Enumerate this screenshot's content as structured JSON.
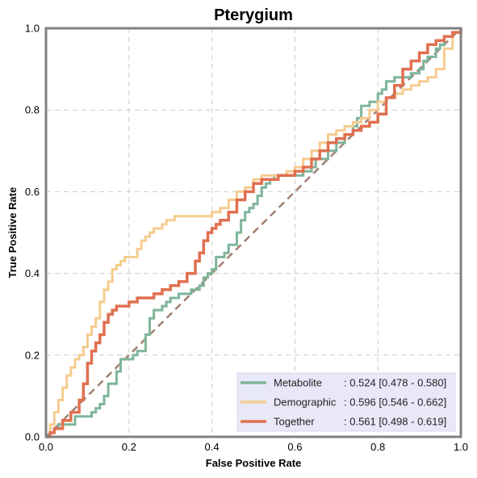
{
  "chart_data": {
    "type": "line",
    "title": "Pterygium",
    "xlabel": "False Positive Rate",
    "ylabel": "True Positive Rate",
    "xlim": [
      0,
      1
    ],
    "ylim": [
      0,
      1
    ],
    "xticks": [
      "0.0",
      "0.2",
      "0.4",
      "0.6",
      "0.8",
      "1.0"
    ],
    "yticks": [
      "0.0",
      "0.2",
      "0.4",
      "0.6",
      "0.8",
      "1.0"
    ],
    "grid": true,
    "legend_position": "bottom-right",
    "diagonal": {
      "x": [
        0,
        1
      ],
      "y": [
        0,
        1
      ],
      "color": "#a08070",
      "style": "dashed"
    },
    "series": [
      {
        "name": "Metabolite",
        "auc_label": ": 0.524 [0.478 - 0.580]",
        "color": "#7fb59a",
        "x": [
          0,
          0.01,
          0.02,
          0.03,
          0.06,
          0.07,
          0.1,
          0.11,
          0.12,
          0.13,
          0.14,
          0.15,
          0.17,
          0.18,
          0.2,
          0.21,
          0.22,
          0.24,
          0.25,
          0.26,
          0.28,
          0.29,
          0.3,
          0.32,
          0.34,
          0.35,
          0.37,
          0.38,
          0.39,
          0.4,
          0.41,
          0.43,
          0.44,
          0.46,
          0.47,
          0.48,
          0.49,
          0.5,
          0.51,
          0.52,
          0.53,
          0.54,
          0.55,
          0.6,
          0.62,
          0.64,
          0.65,
          0.68,
          0.7,
          0.72,
          0.74,
          0.75,
          0.76,
          0.78,
          0.8,
          0.81,
          0.82,
          0.84,
          0.86,
          0.88,
          0.9,
          0.91,
          0.92,
          0.94,
          0.95,
          0.96,
          0.98,
          1.0
        ],
        "y": [
          0,
          0.01,
          0.02,
          0.03,
          0.03,
          0.05,
          0.05,
          0.06,
          0.07,
          0.08,
          0.1,
          0.13,
          0.16,
          0.19,
          0.19,
          0.2,
          0.21,
          0.25,
          0.29,
          0.31,
          0.32,
          0.33,
          0.34,
          0.35,
          0.35,
          0.36,
          0.37,
          0.39,
          0.4,
          0.41,
          0.44,
          0.45,
          0.47,
          0.5,
          0.53,
          0.55,
          0.56,
          0.57,
          0.59,
          0.61,
          0.62,
          0.63,
          0.64,
          0.64,
          0.65,
          0.66,
          0.68,
          0.7,
          0.72,
          0.74,
          0.76,
          0.78,
          0.81,
          0.82,
          0.84,
          0.85,
          0.87,
          0.88,
          0.88,
          0.89,
          0.9,
          0.92,
          0.93,
          0.95,
          0.96,
          0.98,
          0.99,
          1.0
        ]
      },
      {
        "name": "Demographic",
        "auc_label": ": 0.596 [0.546 - 0.662]",
        "color": "#f5cc8f",
        "x": [
          0,
          0.01,
          0.02,
          0.03,
          0.04,
          0.05,
          0.06,
          0.07,
          0.08,
          0.09,
          0.1,
          0.11,
          0.12,
          0.13,
          0.14,
          0.15,
          0.16,
          0.17,
          0.18,
          0.19,
          0.2,
          0.22,
          0.23,
          0.24,
          0.25,
          0.26,
          0.28,
          0.29,
          0.3,
          0.31,
          0.32,
          0.34,
          0.36,
          0.4,
          0.42,
          0.44,
          0.46,
          0.48,
          0.5,
          0.52,
          0.54,
          0.56,
          0.58,
          0.6,
          0.62,
          0.64,
          0.66,
          0.68,
          0.7,
          0.72,
          0.74,
          0.76,
          0.78,
          0.8,
          0.82,
          0.84,
          0.86,
          0.88,
          0.9,
          0.92,
          0.94,
          0.96,
          0.98,
          1.0
        ],
        "y": [
          0,
          0.03,
          0.06,
          0.09,
          0.12,
          0.15,
          0.17,
          0.19,
          0.2,
          0.22,
          0.25,
          0.27,
          0.29,
          0.33,
          0.36,
          0.38,
          0.41,
          0.42,
          0.43,
          0.44,
          0.44,
          0.46,
          0.48,
          0.49,
          0.5,
          0.51,
          0.52,
          0.53,
          0.53,
          0.54,
          0.54,
          0.54,
          0.54,
          0.55,
          0.56,
          0.58,
          0.6,
          0.61,
          0.63,
          0.64,
          0.64,
          0.64,
          0.65,
          0.66,
          0.68,
          0.7,
          0.72,
          0.74,
          0.75,
          0.76,
          0.77,
          0.78,
          0.8,
          0.82,
          0.83,
          0.84,
          0.85,
          0.86,
          0.87,
          0.88,
          0.9,
          0.95,
          0.99,
          1.0
        ]
      },
      {
        "name": "Together",
        "auc_label": ": 0.561 [0.498 - 0.619]",
        "color": "#e07050",
        "x": [
          0,
          0.01,
          0.02,
          0.04,
          0.06,
          0.08,
          0.09,
          0.1,
          0.11,
          0.12,
          0.13,
          0.14,
          0.15,
          0.16,
          0.17,
          0.18,
          0.2,
          0.22,
          0.24,
          0.26,
          0.28,
          0.3,
          0.32,
          0.34,
          0.36,
          0.37,
          0.38,
          0.39,
          0.4,
          0.41,
          0.42,
          0.44,
          0.46,
          0.48,
          0.5,
          0.52,
          0.54,
          0.56,
          0.58,
          0.6,
          0.62,
          0.64,
          0.66,
          0.68,
          0.7,
          0.72,
          0.74,
          0.76,
          0.78,
          0.8,
          0.82,
          0.84,
          0.86,
          0.88,
          0.9,
          0.92,
          0.94,
          0.96,
          0.98,
          1.0
        ],
        "y": [
          0,
          0.01,
          0.02,
          0.04,
          0.06,
          0.09,
          0.13,
          0.18,
          0.21,
          0.23,
          0.25,
          0.28,
          0.3,
          0.31,
          0.32,
          0.32,
          0.33,
          0.34,
          0.34,
          0.35,
          0.36,
          0.37,
          0.38,
          0.4,
          0.43,
          0.45,
          0.48,
          0.5,
          0.51,
          0.52,
          0.53,
          0.55,
          0.58,
          0.6,
          0.62,
          0.63,
          0.63,
          0.64,
          0.64,
          0.65,
          0.66,
          0.68,
          0.7,
          0.72,
          0.73,
          0.74,
          0.75,
          0.76,
          0.77,
          0.79,
          0.83,
          0.86,
          0.9,
          0.92,
          0.94,
          0.96,
          0.97,
          0.98,
          0.99,
          1.0
        ]
      }
    ]
  }
}
